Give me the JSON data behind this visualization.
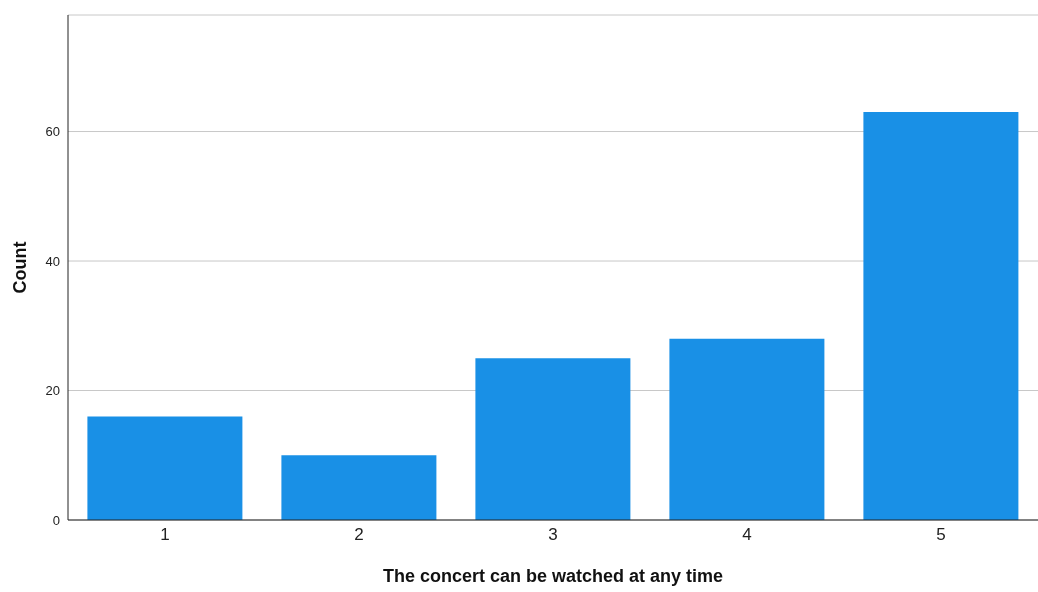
{
  "chart_data": {
    "type": "bar",
    "xlabel": "The concert can be watched at any time",
    "ylabel": "Count",
    "categories": [
      "1",
      "2",
      "3",
      "4",
      "5"
    ],
    "values": [
      16,
      10,
      25,
      28,
      63
    ],
    "color": "#1990e6",
    "ylim": [
      0,
      78
    ],
    "yticks": [
      0,
      20,
      40,
      60
    ],
    "grid": "y"
  }
}
